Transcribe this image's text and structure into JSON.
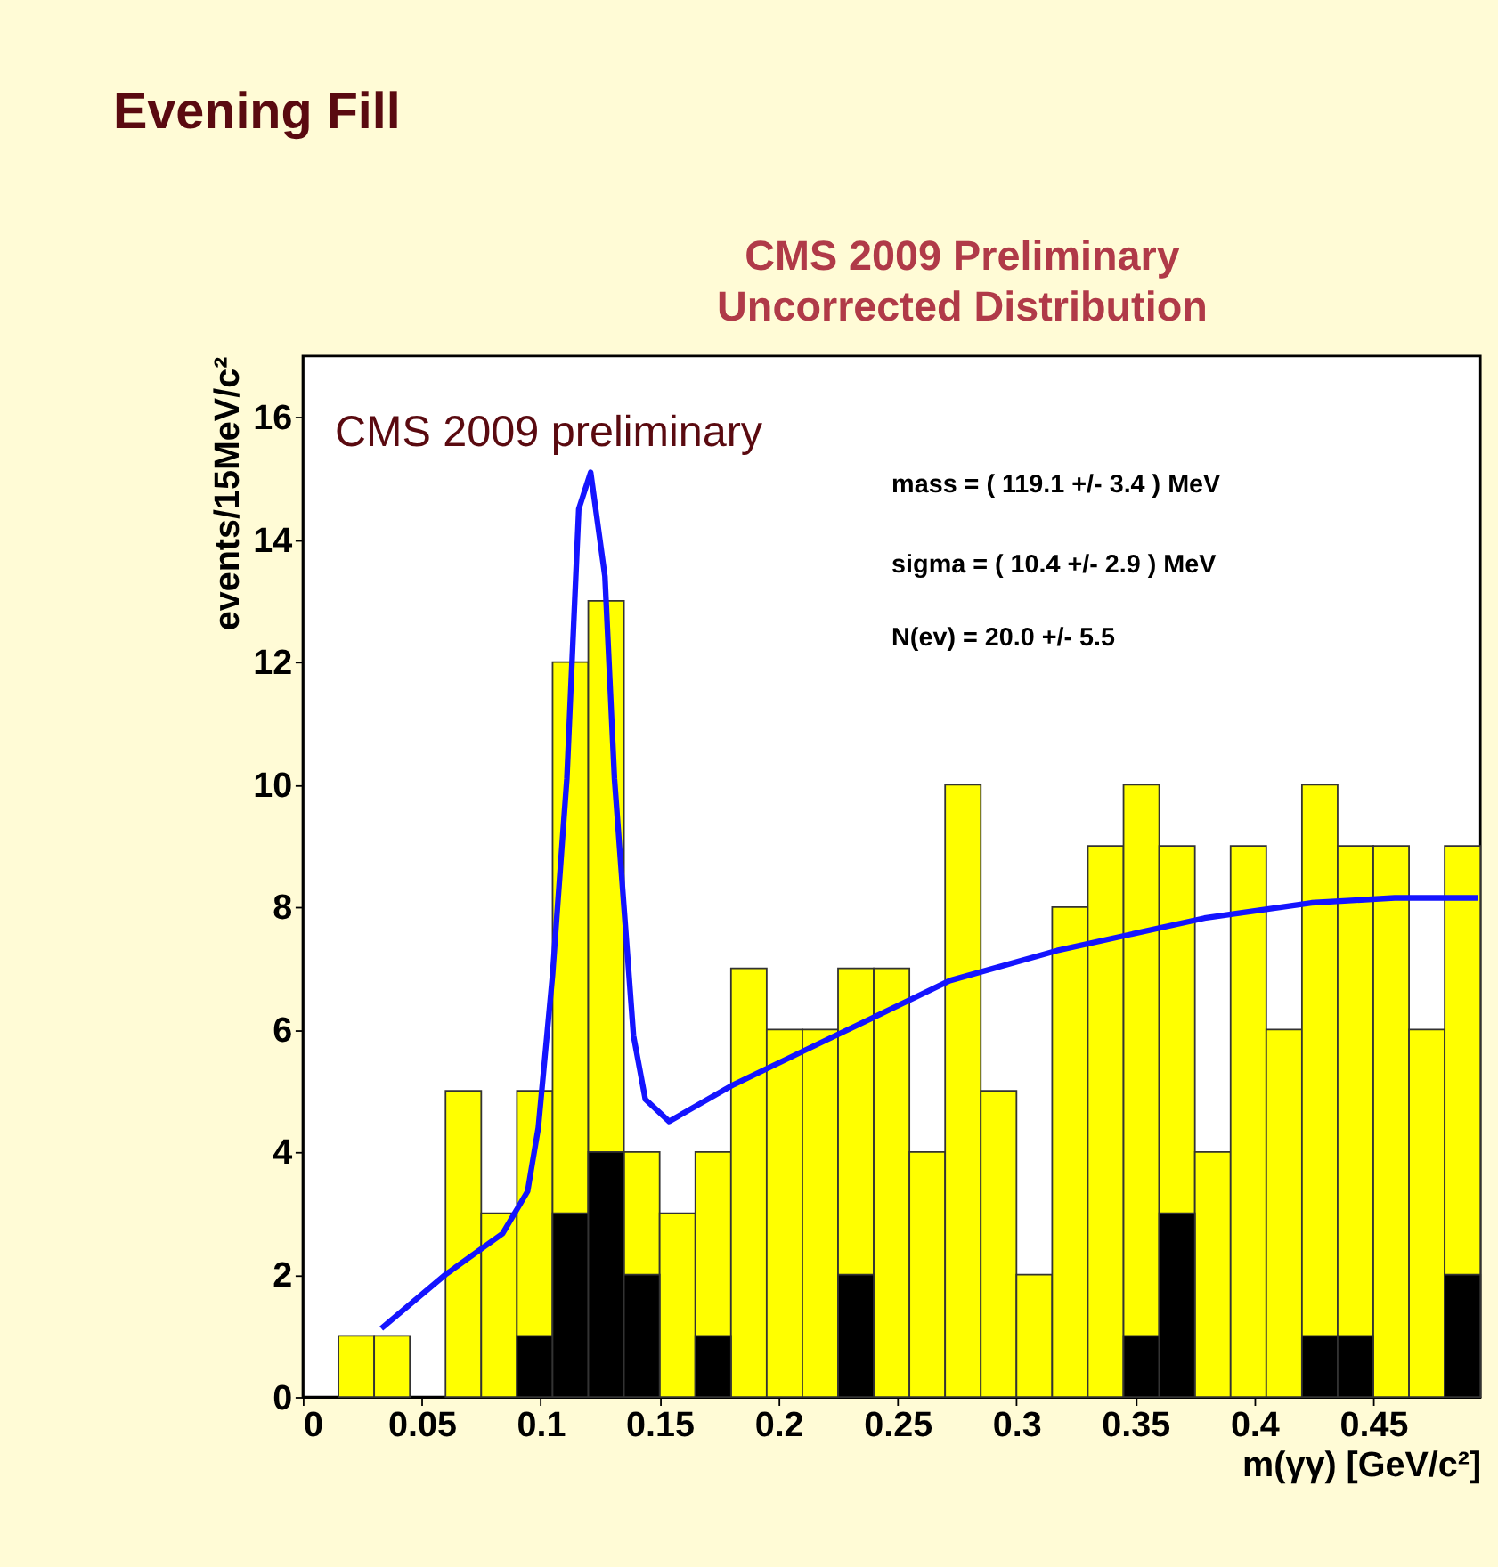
{
  "chart_data": {
    "type": "histogram",
    "title": "Evening Fill",
    "xlabel": "m(γγ) [GeV/c²]",
    "ylabel": "events/15MeV/c²",
    "bins": [
      0,
      0.015,
      0.03,
      0.045,
      0.06,
      0.075,
      0.09,
      0.105,
      0.12,
      0.135,
      0.15,
      0.165,
      0.18,
      0.195,
      0.21,
      0.225,
      0.24,
      0.255,
      0.27,
      0.285,
      0.3,
      0.315,
      0.33,
      0.345,
      0.36,
      0.375,
      0.39,
      0.405,
      0.42,
      0.435,
      0.45,
      0.465,
      0.48,
      0.495
    ],
    "series": [
      {
        "color": "#ffff00",
        "values": [
          0,
          1,
          1,
          0,
          5,
          3,
          5,
          12,
          13,
          4,
          3,
          4,
          7,
          6,
          6,
          7,
          7,
          4,
          10,
          5,
          2,
          8,
          9,
          10,
          9,
          4,
          9,
          6,
          10,
          9,
          9,
          6,
          9
        ]
      },
      {
        "color": "#000000",
        "values": [
          0,
          0,
          0,
          0,
          0,
          0,
          1,
          3,
          4,
          2,
          0,
          1,
          0,
          0,
          0,
          2,
          0,
          0,
          0,
          0,
          0,
          0,
          0,
          1,
          3,
          0,
          0,
          0,
          1,
          1,
          0,
          0,
          2
        ]
      },
      {
        "type": "line",
        "color": "#1414ff",
        "x": [
          0.033,
          0.06,
          0.084,
          0.0945,
          0.099,
          0.105,
          0.111,
          0.116,
          0.121,
          0.127,
          0.131,
          0.135,
          0.139,
          0.144,
          0.154,
          0.181,
          0.211,
          0.24,
          0.272,
          0.317,
          0.379,
          0.424,
          0.459,
          0.494
        ],
        "values": [
          1.12,
          2.0,
          2.67,
          3.36,
          4.4,
          6.9,
          10.1,
          14.5,
          15.1,
          13.4,
          10.1,
          8.0,
          5.9,
          4.86,
          4.5,
          5.1,
          5.66,
          6.2,
          6.8,
          7.29,
          7.82,
          8.07,
          8.15,
          8.15
        ]
      }
    ],
    "xlim": [
      0,
      0.495
    ],
    "ylim": [
      0,
      17
    ],
    "xticks": [
      0,
      0.05,
      0.1,
      0.15,
      0.2,
      0.25,
      0.3,
      0.35,
      0.4,
      0.45
    ],
    "yticks": [
      0,
      2,
      4,
      6,
      8,
      10,
      12,
      14,
      16
    ],
    "annotations": [
      "CMS 2009 Preliminary",
      "Uncorrected Distribution",
      "CMS 2009 preliminary",
      "mass = (  119.1 +/-   3.4 ) MeV",
      "sigma = (   10.4 +/-   2.9 ) MeV",
      "N(ev) =    20.0 +/-   5.5"
    ],
    "grid": false
  }
}
